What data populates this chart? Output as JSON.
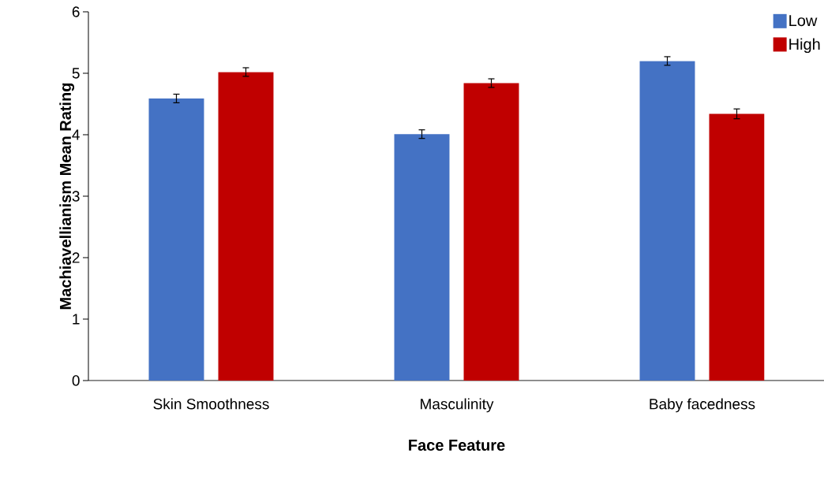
{
  "chart_data": {
    "type": "bar",
    "xlabel": "Face Feature",
    "ylabel": "Machiavellianism  Mean Rating",
    "categories": [
      "Skin Smoothness",
      "Masculinity",
      "Baby facedness"
    ],
    "series": [
      {
        "name": "Low",
        "color": "#4472c4",
        "values": [
          4.59,
          4.01,
          5.2
        ],
        "errors": [
          0.07,
          0.07,
          0.07
        ]
      },
      {
        "name": "High",
        "color": "#c00000",
        "values": [
          5.02,
          4.84,
          4.34
        ],
        "errors": [
          0.07,
          0.07,
          0.08
        ]
      }
    ],
    "ylim": [
      0,
      6
    ],
    "yticks": [
      0,
      1,
      2,
      3,
      4,
      5,
      6
    ],
    "grid": false,
    "legend": "top right"
  }
}
